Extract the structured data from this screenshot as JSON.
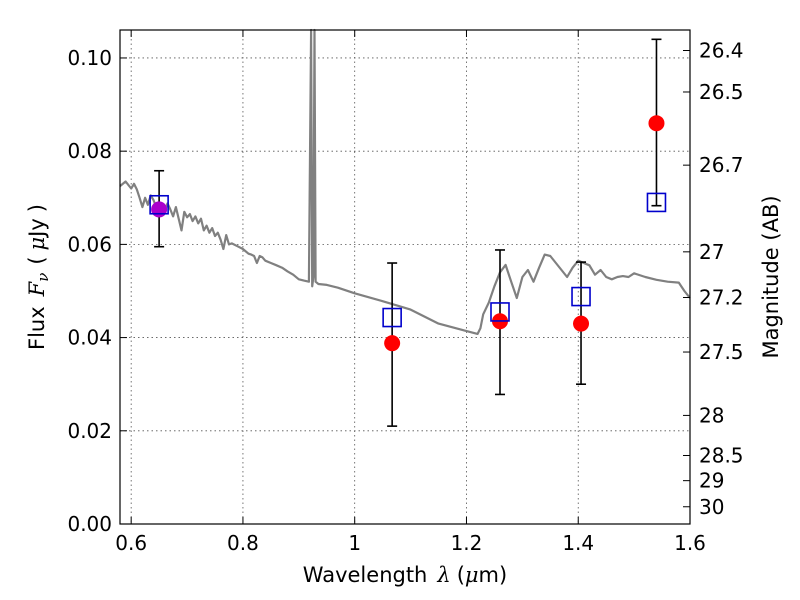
{
  "chart_data": {
    "type": "scatter",
    "xlabel_parts": [
      "Wavelength",
      "λ",
      "(",
      "μ",
      "m)"
    ],
    "ylabel_parts": [
      "Flux",
      "F",
      "ν",
      "(",
      "μ",
      "Jy",
      ")"
    ],
    "y2label": "Magnitude (AB)",
    "xlim": [
      0.58,
      1.6
    ],
    "ylim": [
      0.0,
      0.106
    ],
    "grid": true,
    "x_ticks": [
      0.6,
      0.8,
      1.0,
      1.2,
      1.4,
      1.6
    ],
    "x_tick_labels": [
      "0.6",
      "0.8",
      "1",
      "1.2",
      "1.4",
      "1.6"
    ],
    "y_ticks": [
      0.0,
      0.02,
      0.04,
      0.06,
      0.08,
      0.1
    ],
    "y_tick_labels": [
      "0.00",
      "0.02",
      "0.04",
      "0.06",
      "0.08",
      "0.10"
    ],
    "y2_ticks": [
      {
        "label": "26.4",
        "flux": 0.1016
      },
      {
        "label": "26.5",
        "flux": 0.0927
      },
      {
        "label": "26.7",
        "flux": 0.077
      },
      {
        "label": "27",
        "flux": 0.0584
      },
      {
        "label": "27.2",
        "flux": 0.0486
      },
      {
        "label": "27.5",
        "flux": 0.0369
      },
      {
        "label": "28",
        "flux": 0.0233
      },
      {
        "label": "28.5",
        "flux": 0.0147
      },
      {
        "label": "29",
        "flux": 0.0093
      },
      {
        "label": "30",
        "flux": 0.0037
      }
    ],
    "observed": {
      "color": "#ff0000",
      "points": [
        {
          "x": 0.65,
          "y": 0.0675,
          "yerr_low": 0.0595,
          "yerr_high": 0.0758,
          "color": "#aa00cc"
        },
        {
          "x": 1.067,
          "y": 0.0388,
          "yerr_low": 0.021,
          "yerr_high": 0.056
        },
        {
          "x": 1.26,
          "y": 0.0435,
          "yerr_low": 0.0278,
          "yerr_high": 0.0588
        },
        {
          "x": 1.405,
          "y": 0.043,
          "yerr_low": 0.03,
          "yerr_high": 0.0562
        },
        {
          "x": 1.54,
          "y": 0.086,
          "yerr_low": 0.0683,
          "yerr_high": 0.104
        }
      ]
    },
    "model_photometry": {
      "color": "#0000cc",
      "points": [
        {
          "x": 0.65,
          "y": 0.0685
        },
        {
          "x": 1.067,
          "y": 0.0443
        },
        {
          "x": 1.26,
          "y": 0.0455
        },
        {
          "x": 1.405,
          "y": 0.0488
        },
        {
          "x": 1.54,
          "y": 0.069
        }
      ]
    },
    "sed_model": {
      "color": "#808080",
      "x": [
        0.58,
        0.59,
        0.6,
        0.605,
        0.61,
        0.615,
        0.62,
        0.625,
        0.63,
        0.635,
        0.64,
        0.645,
        0.65,
        0.655,
        0.66,
        0.665,
        0.67,
        0.675,
        0.68,
        0.685,
        0.69,
        0.695,
        0.7,
        0.705,
        0.71,
        0.715,
        0.72,
        0.725,
        0.73,
        0.735,
        0.74,
        0.745,
        0.75,
        0.755,
        0.76,
        0.765,
        0.77,
        0.775,
        0.78,
        0.79,
        0.8,
        0.81,
        0.815,
        0.82,
        0.825,
        0.83,
        0.835,
        0.84,
        0.85,
        0.86,
        0.87,
        0.88,
        0.89,
        0.9,
        0.91,
        0.918,
        0.922,
        0.924,
        0.926,
        0.928,
        0.93,
        0.935,
        0.95,
        0.97,
        1.0,
        1.05,
        1.1,
        1.15,
        1.2,
        1.22,
        1.225,
        1.23,
        1.24,
        1.25,
        1.26,
        1.27,
        1.28,
        1.29,
        1.3,
        1.31,
        1.32,
        1.33,
        1.34,
        1.35,
        1.36,
        1.37,
        1.38,
        1.39,
        1.4,
        1.41,
        1.42,
        1.43,
        1.44,
        1.45,
        1.46,
        1.47,
        1.48,
        1.49,
        1.5,
        1.52,
        1.54,
        1.56,
        1.58,
        1.59,
        1.6
      ],
      "y": [
        0.0725,
        0.0735,
        0.072,
        0.073,
        0.0718,
        0.07,
        0.068,
        0.07,
        0.0685,
        0.0705,
        0.0695,
        0.068,
        0.069,
        0.0665,
        0.067,
        0.0688,
        0.0675,
        0.066,
        0.068,
        0.0655,
        0.063,
        0.067,
        0.0658,
        0.0665,
        0.065,
        0.066,
        0.0645,
        0.0655,
        0.063,
        0.064,
        0.0625,
        0.0635,
        0.0618,
        0.0625,
        0.061,
        0.059,
        0.062,
        0.06,
        0.0602,
        0.0596,
        0.059,
        0.058,
        0.0578,
        0.0575,
        0.056,
        0.0575,
        0.0572,
        0.0565,
        0.056,
        0.0555,
        0.055,
        0.0542,
        0.0535,
        0.0525,
        0.0522,
        0.052,
        0.106,
        0.051,
        0.053,
        0.106,
        0.052,
        0.0515,
        0.0513,
        0.0507,
        0.0495,
        0.0478,
        0.046,
        0.043,
        0.0414,
        0.0408,
        0.042,
        0.045,
        0.0475,
        0.051,
        0.054,
        0.0556,
        0.052,
        0.0485,
        0.053,
        0.0545,
        0.052,
        0.055,
        0.0578,
        0.0575,
        0.056,
        0.0545,
        0.053,
        0.055,
        0.0565,
        0.056,
        0.0555,
        0.0535,
        0.0545,
        0.053,
        0.0525,
        0.053,
        0.0532,
        0.053,
        0.0538,
        0.053,
        0.0524,
        0.052,
        0.0518,
        0.05,
        0.0485
      ]
    }
  }
}
